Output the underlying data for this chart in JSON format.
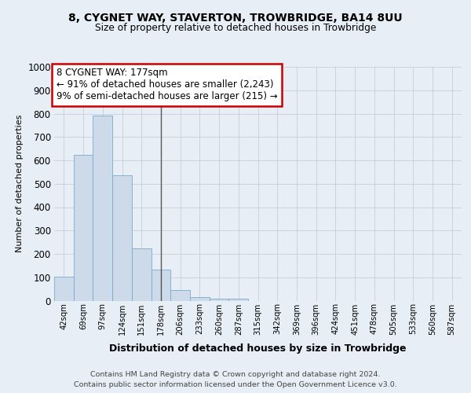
{
  "title1": "8, CYGNET WAY, STAVERTON, TROWBRIDGE, BA14 8UU",
  "title2": "Size of property relative to detached houses in Trowbridge",
  "xlabel": "Distribution of detached houses by size in Trowbridge",
  "ylabel": "Number of detached properties",
  "bar_labels": [
    "42sqm",
    "69sqm",
    "97sqm",
    "124sqm",
    "151sqm",
    "178sqm",
    "206sqm",
    "233sqm",
    "260sqm",
    "287sqm",
    "315sqm",
    "342sqm",
    "369sqm",
    "396sqm",
    "424sqm",
    "451sqm",
    "478sqm",
    "505sqm",
    "533sqm",
    "560sqm",
    "587sqm"
  ],
  "bar_values": [
    102,
    622,
    793,
    537,
    222,
    133,
    44,
    16,
    10,
    10,
    0,
    0,
    0,
    0,
    0,
    0,
    0,
    0,
    0,
    0,
    0
  ],
  "bar_color": "#cddaea",
  "bar_edge_color": "#7aaaca",
  "annotation_label": "8 CYGNET WAY: 177sqm",
  "annotation_line1": "← 91% of detached houses are smaller (2,243)",
  "annotation_line2": "9% of semi-detached houses are larger (215) →",
  "annotation_box_color": "#ffffff",
  "annotation_box_edge": "#cc0000",
  "property_line_x": 5.0,
  "ylim": [
    0,
    1000
  ],
  "yticks": [
    0,
    100,
    200,
    300,
    400,
    500,
    600,
    700,
    800,
    900,
    1000
  ],
  "footnote1": "Contains HM Land Registry data © Crown copyright and database right 2024.",
  "footnote2": "Contains public sector information licensed under the Open Government Licence v3.0.",
  "background_color": "#e8eef5",
  "grid_color": "#c0c8d8"
}
